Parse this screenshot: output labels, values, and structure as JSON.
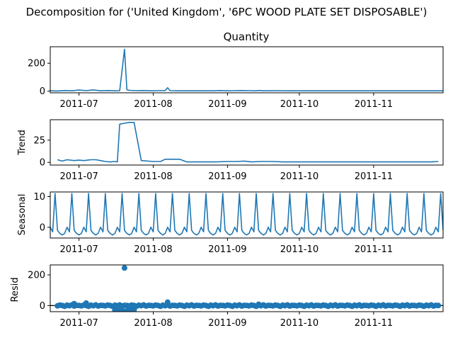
{
  "figure": {
    "suptitle": "Decomposition for ('United Kingdom', '6PC WOOD PLATE SET DISPOSABLE')",
    "line_color": "#1f77b4",
    "zero_line_color": "#000000"
  },
  "chart_data": [
    {
      "id": "observed",
      "type": "line",
      "title": "Quantity",
      "ylabel": "",
      "ylim": [
        -12,
        318
      ],
      "yticks": [
        0,
        200
      ],
      "xlim": [
        "2011-06-19",
        "2011-11-30"
      ],
      "xticks": [
        "2011-07-01",
        "2011-08-01",
        "2011-09-01",
        "2011-10-01",
        "2011-11-01"
      ],
      "xtick_labels": [
        "2011-07",
        "2011-08",
        "2011-09",
        "2011-10",
        "2011-11"
      ],
      "x": [
        "2011-06-19",
        "2011-06-22",
        "2011-06-25",
        "2011-06-28",
        "2011-07-01",
        "2011-07-04",
        "2011-07-07",
        "2011-07-10",
        "2011-07-13",
        "2011-07-16",
        "2011-07-18",
        "2011-07-19",
        "2011-07-20",
        "2011-07-21",
        "2011-07-22",
        "2011-07-25",
        "2011-07-28",
        "2011-07-31",
        "2011-08-03",
        "2011-08-06",
        "2011-08-07",
        "2011-08-08",
        "2011-08-11",
        "2011-08-14",
        "2011-08-20",
        "2011-08-26",
        "2011-08-29",
        "2011-09-01",
        "2011-09-04",
        "2011-09-07",
        "2011-09-10",
        "2011-09-13",
        "2011-09-14",
        "2011-09-16",
        "2011-09-20",
        "2011-09-26",
        "2011-10-01",
        "2011-10-08",
        "2011-10-15",
        "2011-10-22",
        "2011-10-29",
        "2011-11-05",
        "2011-11-12",
        "2011-11-19",
        "2011-11-26",
        "2011-11-30"
      ],
      "y": [
        2,
        1,
        4,
        2,
        8,
        3,
        9,
        2,
        4,
        2,
        3,
        150,
        300,
        10,
        6,
        3,
        4,
        2,
        3,
        4,
        24,
        3,
        2,
        2,
        2,
        2,
        4,
        2,
        3,
        4,
        3,
        2,
        5,
        2,
        3,
        2,
        2,
        2,
        2,
        2,
        2,
        2,
        2,
        2,
        2,
        2
      ]
    },
    {
      "id": "trend",
      "type": "line",
      "title": "",
      "ylabel": "Trend",
      "ylim": [
        -3,
        48
      ],
      "yticks": [
        0,
        25
      ],
      "xlim": [
        "2011-06-19",
        "2011-11-30"
      ],
      "xticks": [
        "2011-07-01",
        "2011-08-01",
        "2011-09-01",
        "2011-10-01",
        "2011-11-01"
      ],
      "xtick_labels": [
        "2011-07",
        "2011-08",
        "2011-09",
        "2011-10",
        "2011-11"
      ],
      "x": [
        "2011-06-22",
        "2011-06-24",
        "2011-06-26",
        "2011-06-29",
        "2011-07-01",
        "2011-07-03",
        "2011-07-06",
        "2011-07-08",
        "2011-07-10",
        "2011-07-12",
        "2011-07-14",
        "2011-07-16",
        "2011-07-17",
        "2011-07-18",
        "2011-07-20",
        "2011-07-22",
        "2011-07-23",
        "2011-07-24",
        "2011-07-27",
        "2011-08-01",
        "2011-08-04",
        "2011-08-06",
        "2011-08-10",
        "2011-08-12",
        "2011-08-15",
        "2011-08-24",
        "2011-08-27",
        "2011-09-01",
        "2011-09-05",
        "2011-09-08",
        "2011-09-11",
        "2011-09-15",
        "2011-09-20",
        "2011-09-24",
        "2011-10-01",
        "2011-10-10",
        "2011-10-20",
        "2011-11-01",
        "2011-11-10",
        "2011-11-20",
        "2011-11-25",
        "2011-11-28"
      ],
      "y": [
        3,
        1.5,
        3,
        2,
        2.5,
        2,
        3,
        3,
        2,
        1,
        0.5,
        1,
        0.5,
        43,
        44,
        45,
        45,
        45,
        2,
        1,
        1,
        3.5,
        3.5,
        3.5,
        0.5,
        0.5,
        0.5,
        1,
        1,
        1.5,
        0.5,
        1,
        1,
        0.5,
        0.5,
        0.5,
        0.5,
        0.5,
        0.5,
        0.5,
        0.5,
        1
      ]
    },
    {
      "id": "seasonal",
      "type": "line",
      "title": "",
      "ylabel": "Seasonal",
      "ylim": [
        -3.5,
        11.5
      ],
      "yticks": [
        0,
        10
      ],
      "xlim": [
        "2011-06-19",
        "2011-11-30"
      ],
      "xticks": [
        "2011-07-01",
        "2011-08-01",
        "2011-09-01",
        "2011-10-01",
        "2011-11-01"
      ],
      "xtick_labels": [
        "2011-07",
        "2011-08",
        "2011-09",
        "2011-10",
        "2011-11"
      ],
      "period_days": 7,
      "pattern": [
        -2.0,
        0.0,
        -1.5,
        11.0,
        -1.0,
        -2.0,
        -2.5
      ],
      "start_date": "2011-06-18",
      "end_date": "2011-11-30"
    },
    {
      "id": "resid",
      "type": "scatter",
      "title": "",
      "ylabel": "Resid",
      "ylim": [
        -40,
        265
      ],
      "yticks": [
        0,
        200
      ],
      "xlim": [
        "2011-06-19",
        "2011-11-30"
      ],
      "xticks": [
        "2011-07-01",
        "2011-08-01",
        "2011-09-01",
        "2011-10-01",
        "2011-11-01"
      ],
      "xtick_labels": [
        "2011-07",
        "2011-08",
        "2011-09",
        "2011-10",
        "2011-11"
      ],
      "zero_line": true,
      "dense_points": {
        "start_date": "2011-06-22",
        "end_date": "2011-11-28",
        "step_days": 1,
        "y_cycle": [
          -2,
          3,
          0,
          -5,
          2,
          -1,
          4,
          -3,
          1,
          0
        ]
      },
      "points": [
        {
          "x": "2011-06-29",
          "y": 12
        },
        {
          "x": "2011-07-04",
          "y": 16
        },
        {
          "x": "2011-07-16",
          "y": -30
        },
        {
          "x": "2011-07-17",
          "y": -31
        },
        {
          "x": "2011-07-18",
          "y": -30
        },
        {
          "x": "2011-07-19",
          "y": -28
        },
        {
          "x": "2011-07-20",
          "y": 245
        },
        {
          "x": "2011-07-21",
          "y": -34
        },
        {
          "x": "2011-07-22",
          "y": -30
        },
        {
          "x": "2011-07-23",
          "y": -32
        },
        {
          "x": "2011-07-24",
          "y": -27
        },
        {
          "x": "2011-08-07",
          "y": 22
        },
        {
          "x": "2011-09-14",
          "y": 8
        }
      ]
    }
  ]
}
